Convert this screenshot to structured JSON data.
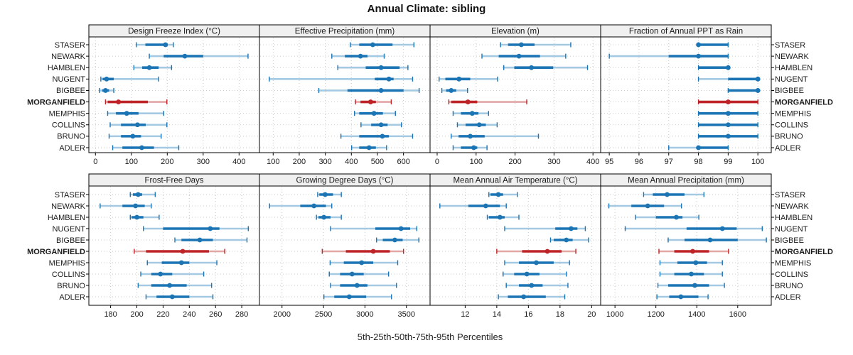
{
  "title": "Annual Climate: sibling",
  "caption": "5th-25th-50th-75th-95th Percentiles",
  "stations": [
    "STASER",
    "NEWARK",
    "HAMBLEN",
    "NUGENT",
    "BIGBEE",
    "MORGANFIELD",
    "MEMPHIS",
    "COLLINS",
    "BRUNO",
    "ADLER"
  ],
  "highlight_station": "MORGANFIELD",
  "colors": {
    "primary": "#1b74b3",
    "primary_light": "#a4cae3",
    "highlight": "#bd2327",
    "highlight_light": "#e2a6a4",
    "grid": "#c9c9c9",
    "strip_bg": "#f0f0f0",
    "border": "#000000",
    "text": "#1a1a1a"
  },
  "chart_data": [
    {
      "type": "interval-dotplot",
      "title": "Design Freeze Index (°C)",
      "xlim": [
        -18.4,
        456.8
      ],
      "ticks": [
        0,
        100,
        200,
        300,
        400
      ],
      "values": [
        [
          114,
          139,
          195,
          201,
          217
        ],
        [
          150,
          190,
          249,
          300,
          425
        ],
        [
          107,
          130,
          150,
          176,
          212
        ],
        [
          15,
          20,
          31,
          51,
          176
        ],
        [
          11,
          19,
          28,
          38,
          51
        ],
        [
          28,
          34,
          64,
          146,
          199
        ],
        [
          34,
          57,
          87,
          120,
          190
        ],
        [
          41,
          71,
          117,
          140,
          199
        ],
        [
          38,
          71,
          104,
          127,
          183
        ],
        [
          48,
          75,
          129,
          163,
          232
        ]
      ]
    },
    {
      "type": "interval-dotplot",
      "title": "Effective Precipitation (mm)",
      "xlim": [
        47.4,
        701.9
      ],
      "ticks": [
        100,
        200,
        300,
        400,
        500,
        600
      ],
      "values": [
        [
          396,
          430,
          482,
          558,
          640
        ],
        [
          325,
          375,
          435,
          462,
          526
        ],
        [
          348,
          455,
          514,
          585,
          617
        ],
        [
          85,
          490,
          544,
          562,
          635
        ],
        [
          275,
          385,
          514,
          600,
          660
        ],
        [
          416,
          435,
          474,
          494,
          553
        ],
        [
          412,
          430,
          487,
          521,
          569
        ],
        [
          437,
          476,
          514,
          539,
          592
        ],
        [
          360,
          430,
          519,
          544,
          635
        ],
        [
          401,
          430,
          468,
          494,
          535
        ]
      ]
    },
    {
      "type": "interval-dotplot",
      "title": "Elevation (m)",
      "xlim": [
        -18.2,
        419.7
      ],
      "ticks": [
        0,
        100,
        200,
        300,
        400
      ],
      "values": [
        [
          163,
          182,
          216,
          250,
          343
        ],
        [
          115,
          158,
          210,
          264,
          330
        ],
        [
          171,
          198,
          242,
          298,
          386
        ],
        [
          5,
          21,
          56,
          85,
          155
        ],
        [
          12,
          23,
          36,
          49,
          78
        ],
        [
          30,
          36,
          79,
          103,
          230
        ],
        [
          41,
          61,
          90,
          106,
          132
        ],
        [
          52,
          73,
          108,
          125,
          154
        ],
        [
          36,
          55,
          85,
          122,
          260
        ],
        [
          41,
          61,
          94,
          103,
          128
        ]
      ]
    },
    {
      "type": "interval-dotplot",
      "title": "Fraction of Annual PPT as Rain",
      "xlim": [
        94.71,
        100.45
      ],
      "ticks": [
        95,
        96,
        97,
        98,
        99,
        100
      ],
      "values": [
        [
          98,
          98,
          98,
          99,
          99
        ],
        [
          95,
          97,
          98,
          99,
          99
        ],
        [
          98,
          98,
          99,
          99,
          99
        ],
        [
          98,
          99,
          100,
          100,
          100
        ],
        [
          99,
          99,
          100,
          100,
          100
        ],
        [
          98,
          98,
          99,
          100,
          100
        ],
        [
          98,
          98,
          99,
          100,
          100
        ],
        [
          98,
          98,
          99,
          100,
          100
        ],
        [
          98,
          98,
          99,
          100,
          100
        ],
        [
          97,
          98,
          98,
          99,
          99
        ]
      ]
    },
    {
      "type": "interval-dotplot",
      "title": "Frost-Free Days",
      "xlim": [
        163.4,
        293.5
      ],
      "ticks": [
        180,
        200,
        220,
        240,
        260,
        280
      ],
      "values": [
        [
          195,
          197,
          201,
          204,
          214
        ],
        [
          172,
          189,
          199,
          206,
          211
        ],
        [
          195,
          196,
          200,
          205,
          217
        ],
        [
          205,
          220,
          256,
          263,
          285
        ],
        [
          229,
          234,
          248,
          258,
          284
        ],
        [
          198,
          207,
          235,
          255,
          267
        ],
        [
          208,
          219,
          234,
          240,
          261
        ],
        [
          203,
          211,
          218,
          227,
          251
        ],
        [
          201,
          211,
          225,
          238,
          257
        ],
        [
          207,
          215,
          227,
          240,
          258
        ]
      ]
    },
    {
      "type": "interval-dotplot",
      "title": "Growing Degree Days (°C)",
      "xlim": [
        1728,
        3785
      ],
      "ticks": [
        2000,
        2500,
        3000,
        3500
      ],
      "values": [
        [
          2430,
          2450,
          2520,
          2615,
          2715
        ],
        [
          1850,
          2220,
          2385,
          2530,
          2600
        ],
        [
          2415,
          2440,
          2505,
          2585,
          2715
        ],
        [
          2585,
          3125,
          3435,
          3545,
          3625
        ],
        [
          3140,
          3215,
          3360,
          3455,
          3650
        ],
        [
          2485,
          2770,
          3100,
          3300,
          3465
        ],
        [
          2580,
          2745,
          2960,
          3100,
          3395
        ],
        [
          2570,
          2700,
          2845,
          2985,
          3285
        ],
        [
          2585,
          2700,
          2905,
          3030,
          3380
        ],
        [
          2505,
          2630,
          2810,
          3015,
          3320
        ]
      ]
    },
    {
      "type": "interval-dotplot",
      "title": "Mean Annual Air Temperature (°C)",
      "xlim": [
        9.78,
        20.57
      ],
      "ticks": [
        12,
        14,
        16,
        18,
        20
      ],
      "values": [
        [
          13.5,
          13.6,
          14.1,
          14.4,
          15.3
        ],
        [
          10.4,
          12.2,
          13.3,
          14.2,
          14.6
        ],
        [
          13.4,
          13.5,
          14.2,
          14.5,
          15.4
        ],
        [
          14.5,
          17.7,
          18.7,
          19.1,
          19.6
        ],
        [
          17.4,
          17.6,
          18.4,
          18.8,
          19.8
        ],
        [
          14.0,
          15.6,
          17.2,
          18.1,
          19.0
        ],
        [
          14.5,
          15.4,
          16.5,
          17.6,
          18.6
        ],
        [
          14.4,
          15.1,
          15.9,
          16.7,
          18.4
        ],
        [
          14.6,
          15.4,
          16.2,
          16.9,
          18.5
        ],
        [
          14.1,
          14.7,
          15.7,
          17.1,
          18.3
        ]
      ]
    },
    {
      "type": "interval-dotplot",
      "title": "Mean Annual Precipitation (mm)",
      "xlim": [
        930,
        1764
      ],
      "ticks": [
        1000,
        1200,
        1400,
        1600
      ],
      "values": [
        [
          1140,
          1185,
          1255,
          1340,
          1435
        ],
        [
          970,
          1080,
          1160,
          1240,
          1325
        ],
        [
          1100,
          1200,
          1300,
          1330,
          1410
        ],
        [
          1050,
          1350,
          1525,
          1595,
          1720
        ],
        [
          1260,
          1340,
          1465,
          1600,
          1740
        ],
        [
          1215,
          1290,
          1380,
          1460,
          1555
        ],
        [
          1220,
          1305,
          1395,
          1450,
          1525
        ],
        [
          1220,
          1290,
          1373,
          1435,
          1525
        ],
        [
          1210,
          1260,
          1390,
          1460,
          1535
        ],
        [
          1205,
          1265,
          1322,
          1408,
          1455
        ]
      ]
    }
  ]
}
